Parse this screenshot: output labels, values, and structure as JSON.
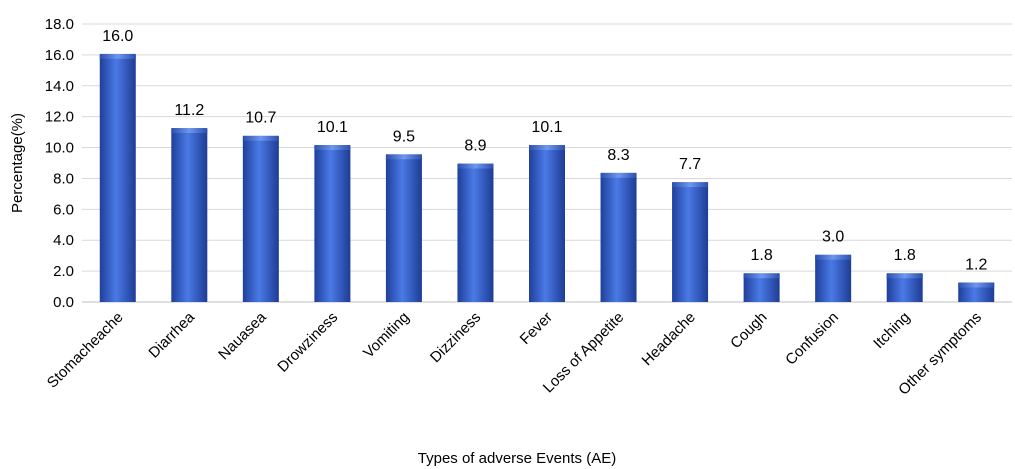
{
  "chart_data": {
    "type": "bar",
    "title": "",
    "xlabel": "Types of adverse Events (AE)",
    "ylabel": "Percentage(%)",
    "ylim": [
      0,
      18
    ],
    "ytick_step": 2,
    "ytick_labels": [
      "0.0",
      "2.0",
      "4.0",
      "6.0",
      "8.0",
      "10.0",
      "12.0",
      "14.0",
      "16.0",
      "18.0"
    ],
    "grid": true,
    "legend": "none",
    "bar_color": "#3366cc",
    "categories": [
      "Stomacheache",
      "Diarrhea",
      "Nauasea",
      "Drowziness",
      "Vomiting",
      "Dizziness",
      "Fever",
      "Loss of Appetite",
      "Headache",
      "Cough",
      "Confusion",
      "Itching",
      "Other symptoms"
    ],
    "values": [
      16.0,
      11.2,
      10.7,
      10.1,
      9.5,
      8.9,
      10.1,
      8.3,
      7.7,
      1.8,
      3.0,
      1.8,
      1.2
    ],
    "value_labels": [
      "16.0",
      "11.2",
      "10.7",
      "10.1",
      "9.5",
      "8.9",
      "10.1",
      "8.3",
      "7.7",
      "1.8",
      "3.0",
      "1.8",
      "1.2"
    ]
  }
}
